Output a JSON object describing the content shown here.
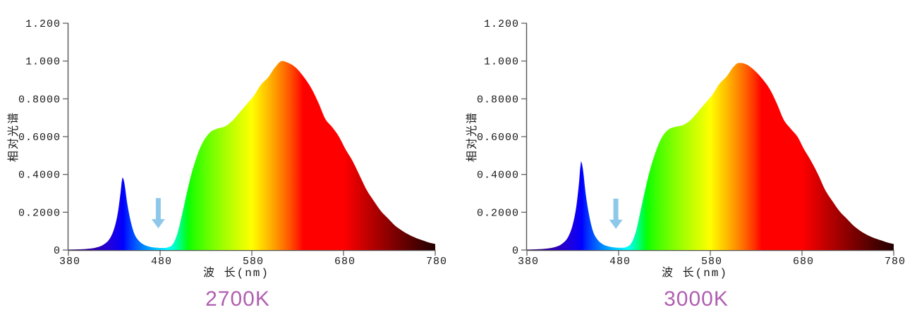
{
  "page": {
    "background": "#ffffff"
  },
  "chart_data": [
    {
      "type": "area",
      "title": "2700K",
      "title_color": "#b05fb0",
      "xlabel": "波 长(nm)",
      "ylabel": "相对光谱",
      "xlim": [
        380,
        780
      ],
      "ylim": [
        0,
        1.2
      ],
      "grid": false,
      "legend": false,
      "fill": "spectral-gradient",
      "x_ticks": {
        "values": [
          380,
          480,
          580,
          680,
          780
        ],
        "labels": [
          "380",
          "480",
          "580",
          "680",
          "780"
        ]
      },
      "y_ticks": {
        "values": [
          0,
          0.2,
          0.4,
          0.6,
          0.8,
          1.0,
          1.2
        ],
        "labels": [
          "0",
          "0.2000",
          "0.4000",
          "0.6000",
          "0.8000",
          "1.000",
          "1.200"
        ]
      },
      "annotations": [
        {
          "type": "arrow-down",
          "name": "dip-arrow",
          "wavelength": 478,
          "value_top": 0.275,
          "value_tip": 0.115,
          "color": "#8dc8eb"
        }
      ],
      "points": [
        [
          380,
          0.002
        ],
        [
          400,
          0.006
        ],
        [
          410,
          0.013
        ],
        [
          418,
          0.028
        ],
        [
          425,
          0.06
        ],
        [
          430,
          0.115
        ],
        [
          434,
          0.2
        ],
        [
          437,
          0.31
        ],
        [
          439,
          0.385
        ],
        [
          441,
          0.355
        ],
        [
          444,
          0.25
        ],
        [
          448,
          0.15
        ],
        [
          452,
          0.085
        ],
        [
          457,
          0.048
        ],
        [
          463,
          0.027
        ],
        [
          470,
          0.016
        ],
        [
          477,
          0.012
        ],
        [
          483,
          0.011
        ],
        [
          489,
          0.015
        ],
        [
          494,
          0.032
        ],
        [
          499,
          0.09
        ],
        [
          504,
          0.19
        ],
        [
          509,
          0.3
        ],
        [
          514,
          0.4
        ],
        [
          519,
          0.48
        ],
        [
          524,
          0.545
        ],
        [
          529,
          0.59
        ],
        [
          535,
          0.625
        ],
        [
          542,
          0.642
        ],
        [
          551,
          0.655
        ],
        [
          560,
          0.69
        ],
        [
          567,
          0.73
        ],
        [
          575,
          0.775
        ],
        [
          582,
          0.815
        ],
        [
          590,
          0.875
        ],
        [
          598,
          0.915
        ],
        [
          605,
          0.965
        ],
        [
          613,
          1.0
        ],
        [
          620,
          0.99
        ],
        [
          628,
          0.965
        ],
        [
          636,
          0.92
        ],
        [
          645,
          0.855
        ],
        [
          653,
          0.775
        ],
        [
          660,
          0.695
        ],
        [
          668,
          0.648
        ],
        [
          675,
          0.6
        ],
        [
          682,
          0.535
        ],
        [
          690,
          0.47
        ],
        [
          698,
          0.39
        ],
        [
          705,
          0.32
        ],
        [
          713,
          0.26
        ],
        [
          721,
          0.205
        ],
        [
          729,
          0.165
        ],
        [
          736,
          0.13
        ],
        [
          744,
          0.102
        ],
        [
          751,
          0.082
        ],
        [
          759,
          0.064
        ],
        [
          767,
          0.05
        ],
        [
          773,
          0.04
        ],
        [
          780,
          0.032
        ]
      ]
    },
    {
      "type": "area",
      "title": "3000K",
      "title_color": "#b05fb0",
      "xlabel": "波 长(nm)",
      "ylabel": "相对光谱",
      "xlim": [
        380,
        780
      ],
      "ylim": [
        0,
        1.2
      ],
      "grid": false,
      "legend": false,
      "fill": "spectral-gradient",
      "x_ticks": {
        "values": [
          380,
          480,
          580,
          680,
          780
        ],
        "labels": [
          "380",
          "480",
          "580",
          "680",
          "780"
        ]
      },
      "y_ticks": {
        "values": [
          0,
          0.2,
          0.4,
          0.6,
          0.8,
          1.0,
          1.2
        ],
        "labels": [
          "0",
          "0.2000",
          "0.4000",
          "0.6000",
          "0.8000",
          "1.000",
          "1.200"
        ]
      },
      "annotations": [
        {
          "type": "arrow-down",
          "name": "dip-arrow",
          "wavelength": 477,
          "value_top": 0.272,
          "value_tip": 0.112,
          "color": "#8dc8eb"
        }
      ],
      "points": [
        [
          380,
          0.002
        ],
        [
          400,
          0.007
        ],
        [
          410,
          0.015
        ],
        [
          418,
          0.032
        ],
        [
          425,
          0.07
        ],
        [
          430,
          0.135
        ],
        [
          434,
          0.235
        ],
        [
          437,
          0.365
        ],
        [
          439,
          0.47
        ],
        [
          441,
          0.43
        ],
        [
          444,
          0.3
        ],
        [
          448,
          0.18
        ],
        [
          452,
          0.1
        ],
        [
          457,
          0.055
        ],
        [
          463,
          0.03
        ],
        [
          470,
          0.018
        ],
        [
          477,
          0.013
        ],
        [
          483,
          0.012
        ],
        [
          489,
          0.017
        ],
        [
          494,
          0.038
        ],
        [
          499,
          0.1
        ],
        [
          504,
          0.21
        ],
        [
          509,
          0.32
        ],
        [
          514,
          0.42
        ],
        [
          519,
          0.5
        ],
        [
          524,
          0.565
        ],
        [
          529,
          0.61
        ],
        [
          535,
          0.64
        ],
        [
          542,
          0.652
        ],
        [
          551,
          0.663
        ],
        [
          560,
          0.695
        ],
        [
          567,
          0.735
        ],
        [
          575,
          0.78
        ],
        [
          582,
          0.82
        ],
        [
          590,
          0.88
        ],
        [
          598,
          0.92
        ],
        [
          605,
          0.968
        ],
        [
          611,
          0.99
        ],
        [
          618,
          0.985
        ],
        [
          626,
          0.96
        ],
        [
          636,
          0.91
        ],
        [
          645,
          0.85
        ],
        [
          653,
          0.77
        ],
        [
          660,
          0.69
        ],
        [
          668,
          0.64
        ],
        [
          675,
          0.6
        ],
        [
          682,
          0.535
        ],
        [
          690,
          0.47
        ],
        [
          698,
          0.395
        ],
        [
          705,
          0.32
        ],
        [
          713,
          0.26
        ],
        [
          721,
          0.205
        ],
        [
          729,
          0.165
        ],
        [
          736,
          0.13
        ],
        [
          744,
          0.1
        ],
        [
          751,
          0.08
        ],
        [
          759,
          0.063
        ],
        [
          767,
          0.05
        ],
        [
          773,
          0.04
        ],
        [
          780,
          0.032
        ]
      ]
    }
  ],
  "style_tokens": {
    "axis_color": "#555555",
    "tick_text_color": "#1a1a1a",
    "arrow_color": "#8dc8eb",
    "title_color": "#b05fb0"
  }
}
